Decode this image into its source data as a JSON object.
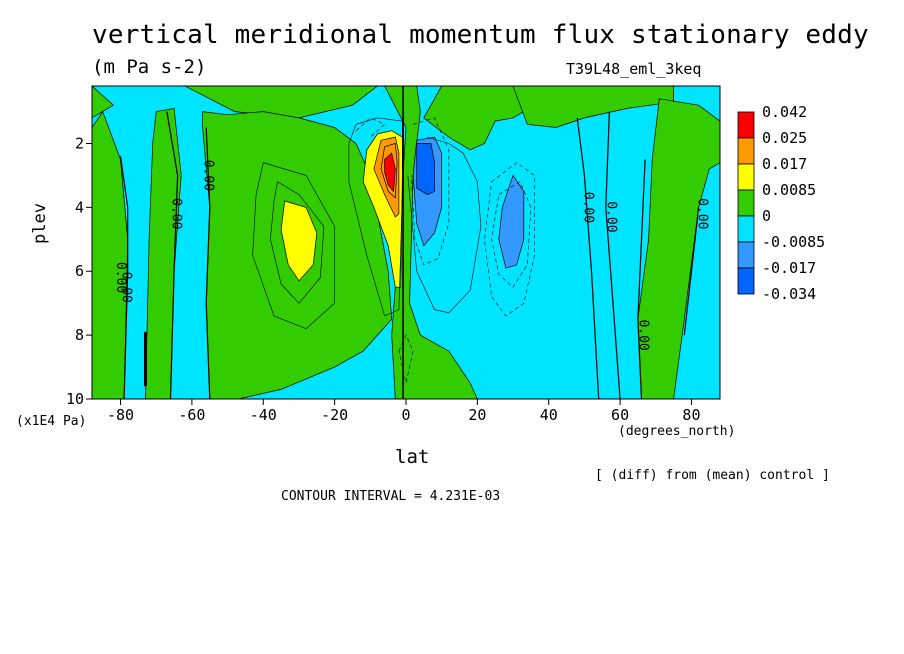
{
  "chart_data": {
    "type": "heatmap",
    "title": "vertical meridional momentum flux stationary eddy",
    "units": "(m Pa s-2)",
    "run_id": "T39L48_eml_3keq",
    "xlabel": "lat",
    "xlabel_unit": "(degrees_north)",
    "ylabel": "plev",
    "ylabel_unit": "(x1E4 Pa)",
    "note": "[ (diff) from (mean) control ]",
    "contour_interval_text": "CONTOUR INTERVAL = 4.231E-03",
    "xlim": [
      -88,
      88
    ],
    "ylim": [
      10,
      0.2
    ],
    "x_ticks": [
      -80,
      -60,
      -40,
      -20,
      0,
      20,
      40,
      60,
      80
    ],
    "x_tick_labels": [
      "-80",
      "-60",
      "-40",
      "-20",
      "0",
      "20",
      "40",
      "60",
      "80"
    ],
    "y_ticks": [
      2,
      4,
      6,
      8,
      10
    ],
    "y_tick_labels": [
      "2",
      "4",
      "6",
      "8",
      "10"
    ],
    "legend": {
      "position": "right",
      "labels": [
        "0.042",
        "0.025",
        "0.017",
        "0.0085",
        "0",
        "-0.0085",
        "-0.017",
        "-0.034"
      ],
      "colors": [
        "#ff0000",
        "#ff9900",
        "#ffff00",
        "#33cc00",
        "#00e5ff",
        "#3399ff",
        "#0066ff"
      ]
    },
    "contour_line_labels": [
      "0.00"
    ],
    "regions": [
      {
        "level": 0,
        "color": "#33cc00",
        "points": [
          [
            -88,
            0.2
          ],
          [
            -62,
            0.2
          ],
          [
            -48,
            1.0
          ],
          [
            -30,
            1.2
          ],
          [
            -15,
            0.8
          ],
          [
            -8,
            0.2
          ],
          [
            -88,
            0.2
          ]
        ]
      },
      {
        "level": 0,
        "color": "#33cc00",
        "points": [
          [
            -88,
            1.5
          ],
          [
            -85,
            1.0
          ],
          [
            -80,
            2.5
          ],
          [
            -78,
            5
          ],
          [
            -79,
            10
          ],
          [
            -88,
            10
          ]
        ]
      },
      {
        "level": 0,
        "color": "#33cc00",
        "points": [
          [
            -70,
            1.0
          ],
          [
            -65,
            0.9
          ],
          [
            -63,
            3
          ],
          [
            -65,
            6
          ],
          [
            -66,
            10
          ],
          [
            -73,
            10
          ],
          [
            -72,
            5
          ],
          [
            -71,
            2
          ]
        ]
      },
      {
        "level": 0,
        "color": "#33cc00",
        "points": [
          [
            -57,
            1.0
          ],
          [
            -50,
            1.1
          ],
          [
            -40,
            1.0
          ],
          [
            -30,
            1.2
          ],
          [
            -20,
            1.5
          ],
          [
            -14,
            2.0
          ],
          [
            -10,
            3.0
          ],
          [
            -5,
            6.0
          ],
          [
            -4,
            7.5
          ],
          [
            -12,
            8.5
          ],
          [
            -20,
            9
          ],
          [
            -35,
            9.7
          ],
          [
            -47,
            10
          ],
          [
            -55,
            10
          ],
          [
            -56,
            7
          ],
          [
            -55,
            4
          ],
          [
            -57,
            1.5
          ]
        ]
      },
      {
        "level": 0,
        "color": "#33cc00",
        "points": [
          [
            -6,
            0.2
          ],
          [
            3,
            0.2
          ],
          [
            4,
            1.0
          ],
          [
            2,
            3.0
          ],
          [
            1,
            7.0
          ],
          [
            4,
            8.0
          ],
          [
            12,
            8.5
          ],
          [
            18,
            9.5
          ],
          [
            20,
            10
          ],
          [
            -3,
            10
          ],
          [
            -4,
            8
          ],
          [
            -2,
            5
          ],
          [
            0,
            1.5
          ]
        ]
      },
      {
        "level": 0,
        "color": "#33cc00",
        "points": [
          [
            10,
            0.2
          ],
          [
            32,
            0.2
          ],
          [
            36,
            0.8
          ],
          [
            30,
            1.2
          ],
          [
            25,
            1.3
          ],
          [
            22,
            2.0
          ],
          [
            18,
            2.2
          ],
          [
            12,
            1.8
          ],
          [
            5,
            1.2
          ]
        ]
      },
      {
        "level": 0,
        "color": "#33cc00",
        "points": [
          [
            30,
            0.2
          ],
          [
            75,
            0.2
          ],
          [
            75,
            0.7
          ],
          [
            62,
            0.9
          ],
          [
            50,
            1.2
          ],
          [
            42,
            1.5
          ],
          [
            34,
            1.4
          ],
          [
            32,
            0.8
          ]
        ]
      },
      {
        "level": 0,
        "color": "#33cc00",
        "points": [
          [
            71,
            0.6
          ],
          [
            82,
            0.8
          ],
          [
            88,
            1.3
          ],
          [
            88,
            2.6
          ],
          [
            85,
            2.8
          ],
          [
            82,
            4
          ],
          [
            78,
            7.5
          ],
          [
            75,
            10
          ],
          [
            66,
            10
          ],
          [
            65,
            7.5
          ],
          [
            68,
            5
          ],
          [
            69,
            2.5
          ]
        ]
      },
      {
        "level": 0,
        "color": "#33cc00",
        "points": [
          [
            -88,
            0.2
          ],
          [
            -88,
            1.2
          ],
          [
            -82,
            0.8
          ]
        ]
      },
      {
        "level": 0.0085,
        "color": "#ffff00",
        "points": [
          [
            -34,
            3.8
          ],
          [
            -28,
            4.0
          ],
          [
            -25,
            4.8
          ],
          [
            -26,
            5.8
          ],
          [
            -30,
            6.3
          ],
          [
            -33,
            5.8
          ],
          [
            -35,
            4.7
          ]
        ]
      },
      {
        "level": 0.0085,
        "color": "#ffff00",
        "points": [
          [
            -8,
            1.7
          ],
          [
            -4,
            1.6
          ],
          [
            -1,
            1.8
          ],
          [
            -1,
            3.0
          ],
          [
            -1.5,
            6.5
          ],
          [
            -3,
            6.5
          ],
          [
            -5,
            5.2
          ],
          [
            -9,
            4.0
          ],
          [
            -12,
            3.2
          ],
          [
            -11,
            2.2
          ]
        ]
      },
      {
        "level": 0.017,
        "color": "#ff9900",
        "points": [
          [
            -7,
            1.9
          ],
          [
            -3,
            1.8
          ],
          [
            -2,
            2.3
          ],
          [
            -2,
            4.2
          ],
          [
            -3,
            4.3
          ],
          [
            -6,
            3.6
          ],
          [
            -9,
            2.8
          ]
        ]
      },
      {
        "level": 0.025,
        "color": "#ff9900",
        "points": [
          [
            -6,
            2.1
          ],
          [
            -3,
            2.0
          ],
          [
            -2.5,
            2.6
          ],
          [
            -3,
            3.7
          ],
          [
            -5,
            3.5
          ],
          [
            -7,
            2.8
          ]
        ]
      },
      {
        "level": 0.042,
        "color": "#ff0000",
        "points": [
          [
            -6,
            2.5
          ],
          [
            -4,
            2.3
          ],
          [
            -3,
            2.8
          ],
          [
            -3.5,
            3.5
          ],
          [
            -5,
            3.3
          ],
          [
            -6,
            2.9
          ]
        ]
      },
      {
        "level": -0.0085,
        "color": "#3399ff",
        "points": [
          [
            3,
            1.9
          ],
          [
            8,
            1.8
          ],
          [
            10,
            2.3
          ],
          [
            10,
            4
          ],
          [
            8,
            4.8
          ],
          [
            5,
            5.2
          ],
          [
            3,
            4.5
          ],
          [
            2,
            3
          ]
        ]
      },
      {
        "level": -0.0085,
        "color": "#3399ff",
        "points": [
          [
            30,
            3.0
          ],
          [
            33,
            3.5
          ],
          [
            33,
            5.0
          ],
          [
            31,
            5.8
          ],
          [
            28,
            5.9
          ],
          [
            26,
            5.0
          ],
          [
            27,
            4.0
          ]
        ]
      },
      {
        "level": -0.017,
        "color": "#0066ff",
        "points": [
          [
            3,
            2.0
          ],
          [
            7,
            2.0
          ],
          [
            8,
            2.6
          ],
          [
            8,
            3.5
          ],
          [
            6,
            3.6
          ],
          [
            3,
            3.4
          ],
          [
            3,
            2.5
          ]
        ]
      }
    ],
    "zero_contours": [
      [
        [
          -80,
          2.4
        ],
        [
          -78,
          4
        ],
        [
          -78,
          6
        ],
        [
          -79,
          10
        ]
      ],
      [
        [
          -67,
          1.0
        ],
        [
          -64,
          3
        ],
        [
          -65,
          6
        ],
        [
          -66,
          10
        ]
      ],
      [
        [
          -56,
          1.5
        ],
        [
          -55,
          4
        ],
        [
          -56,
          7
        ],
        [
          -55,
          10
        ]
      ],
      [
        [
          48,
          1.2
        ],
        [
          50,
          3
        ],
        [
          52,
          6
        ],
        [
          54,
          10
        ]
      ],
      [
        [
          57,
          1.0
        ],
        [
          56,
          4
        ],
        [
          58,
          7
        ],
        [
          60,
          10
        ]
      ],
      [
        [
          67,
          2.5
        ],
        [
          66,
          5
        ],
        [
          65,
          7.5
        ],
        [
          66,
          10
        ]
      ],
      [
        [
          82,
          4
        ],
        [
          80,
          6
        ],
        [
          78,
          8
        ]
      ]
    ],
    "thin_contours": [
      [
        [
          -36,
          3.2
        ],
        [
          -30,
          3.6
        ],
        [
          -23,
          4.6
        ],
        [
          -24,
          6.2
        ],
        [
          -30,
          7.0
        ],
        [
          -35,
          6.4
        ],
        [
          -38,
          5.0
        ],
        [
          -37,
          3.8
        ],
        [
          -36,
          3.2
        ]
      ],
      [
        [
          -40,
          2.6
        ],
        [
          -28,
          3.0
        ],
        [
          -20,
          4.6
        ],
        [
          -20,
          7.0
        ],
        [
          -28,
          7.8
        ],
        [
          -37,
          7.4
        ],
        [
          -43,
          5.5
        ],
        [
          -42,
          3.6
        ],
        [
          -40,
          2.6
        ]
      ],
      [
        [
          -14,
          1.4
        ],
        [
          -8,
          1.2
        ],
        [
          -1,
          1.3
        ],
        [
          -1,
          3.5
        ],
        [
          -2,
          7.2
        ],
        [
          -6,
          7.4
        ],
        [
          -11,
          5.5
        ],
        [
          -16,
          3.2
        ],
        [
          -16,
          2.0
        ],
        [
          -14,
          1.4
        ]
      ],
      [
        [
          0.5,
          3
        ],
        [
          3,
          6
        ],
        [
          8,
          7.2
        ],
        [
          12,
          7.3
        ],
        [
          18,
          6.6
        ],
        [
          21,
          4.6
        ],
        [
          20,
          3.2
        ],
        [
          16,
          2.3
        ],
        [
          12,
          2.0
        ],
        [
          6,
          1.8
        ]
      ]
    ],
    "dashed_contours": [
      [
        [
          24,
          3.2
        ],
        [
          31,
          2.6
        ],
        [
          36,
          3.0
        ],
        [
          36,
          5.5
        ],
        [
          33,
          7.0
        ],
        [
          28,
          7.4
        ],
        [
          24,
          6.8
        ],
        [
          22,
          5.0
        ],
        [
          24,
          3.2
        ]
      ],
      [
        [
          26,
          3.6
        ],
        [
          32,
          3.2
        ],
        [
          35,
          4.0
        ],
        [
          34,
          5.8
        ],
        [
          30,
          6.5
        ],
        [
          26,
          6.1
        ],
        [
          24,
          5.0
        ],
        [
          26,
          3.6
        ]
      ],
      [
        [
          2,
          1.4
        ],
        [
          8,
          1.2
        ],
        [
          12,
          2.2
        ],
        [
          12,
          4.5
        ],
        [
          9,
          5.6
        ],
        [
          5,
          5.8
        ],
        [
          2.5,
          5
        ],
        [
          1.5,
          3
        ]
      ],
      [
        [
          -14,
          1.6
        ],
        [
          -10,
          1.2
        ],
        [
          -6,
          1.4
        ],
        [
          -10,
          1.8
        ]
      ],
      [
        [
          -2,
          8.5
        ],
        [
          0,
          8.0
        ],
        [
          2,
          8.5
        ],
        [
          0,
          9.5
        ],
        [
          -2,
          8.5
        ]
      ]
    ],
    "thick_lines": [
      [
        [
          -73,
          7.9
        ],
        [
          -73,
          9.6
        ]
      ],
      [
        [
          -0.8,
          0.2
        ],
        [
          -0.8,
          10
        ]
      ]
    ]
  }
}
